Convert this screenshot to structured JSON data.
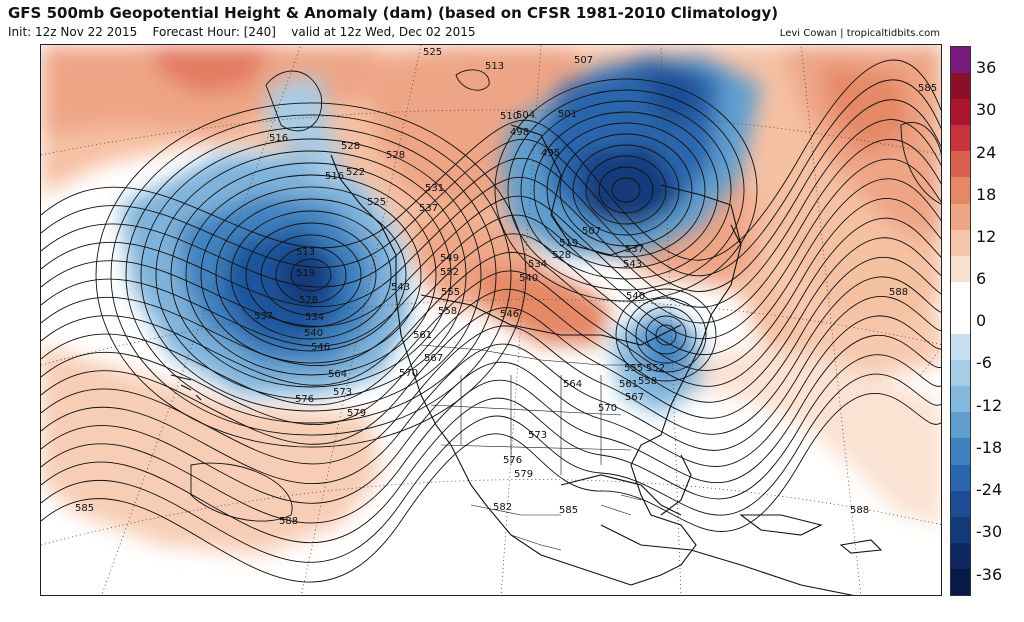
{
  "header": {
    "title": "GFS 500mb Geopotential Height & Anomaly (dam) (based on CFSR 1981-2010 Climatology)",
    "init": "Init: 12z Nov 22 2015",
    "forecast_hour": "Forecast Hour: [240]",
    "valid": "valid at 12z Wed, Dec 02 2015",
    "credit": "Levi Cowan | tropicaltidbits.com"
  },
  "colorbar": {
    "labels": [
      "36",
      "30",
      "24",
      "18",
      "12",
      "6",
      "0",
      "-6",
      "-12",
      "-18",
      "-24",
      "-30",
      "-36"
    ],
    "colors": [
      "#7a1a7e",
      "#8a1028",
      "#a8152c",
      "#c7343b",
      "#d8614f",
      "#e58866",
      "#eea586",
      "#f6c6ac",
      "#fbe0d0",
      "#ffffff",
      "#ffffff",
      "#c5dff0",
      "#a7cce6",
      "#84b7dd",
      "#5f9ecf",
      "#3f82c0",
      "#2a66ad",
      "#1c4d94",
      "#143a7a",
      "#0d2760",
      "#081848"
    ]
  },
  "contour_labels": {
    "h513a": "513",
    "h507a": "507",
    "h525a": "525",
    "h516a": "516",
    "h528a": "528",
    "h528b": "528",
    "h504": "504",
    "h501": "501",
    "h498": "498",
    "h495": "495",
    "h510": "510",
    "h522": "522",
    "h516b": "516",
    "h531": "531",
    "h537a": "537",
    "h525b": "525",
    "h513b": "513",
    "h519a": "519",
    "h528c": "528",
    "h537b": "537",
    "h534a": "534",
    "h540a": "540",
    "h546a": "546",
    "h564a": "564",
    "h573a": "573",
    "h576a": "576",
    "h579a": "579",
    "h549": "549",
    "h552a": "552",
    "h555a": "555",
    "h558": "558",
    "h543a": "543",
    "h561a": "561",
    "h567a": "567",
    "h570a": "570",
    "h546b": "546",
    "h507b": "507",
    "h519b": "519",
    "h528d": "528",
    "h534b": "534",
    "h540b": "540",
    "h537c": "537",
    "h543b": "543",
    "h540c": "540",
    "h564b": "564",
    "h555b": "555",
    "h552b": "552",
    "h561b": "561",
    "h558b": "558",
    "h567b": "567",
    "h570b": "570",
    "h573b": "573",
    "h576b": "576",
    "h579b": "579",
    "h582": "582",
    "h585a": "585",
    "h585b": "585",
    "h588a": "588",
    "h585c": "585",
    "h588b": "588",
    "h588c": "588"
  }
}
